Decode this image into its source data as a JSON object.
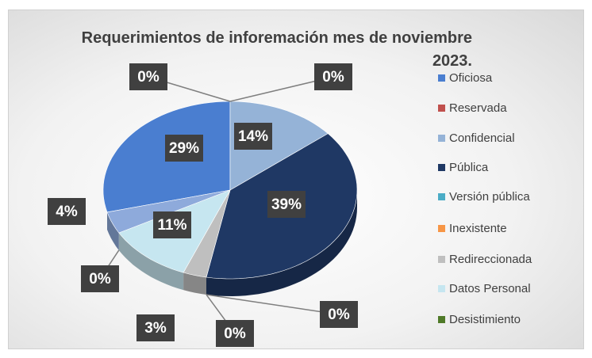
{
  "chart_data": {
    "type": "pie3d",
    "title": "Requerimientos de inforemación mes de noviembre 2023.",
    "categories": [
      "Oficiosa",
      "Reservada",
      null,
      "Confidencial",
      "Pública",
      "Versión pública",
      "Inexistente",
      "Redireccionada",
      "Datos Personal",
      "Desistimiento",
      null
    ],
    "values": [
      29,
      0,
      0,
      14,
      39,
      0,
      0,
      3,
      11,
      0,
      4
    ],
    "value_labels": [
      "29%",
      "0%",
      "0%",
      "14%",
      "39%",
      "0%",
      "0%",
      "3%",
      "11%",
      "0%",
      "4%"
    ],
    "colors": [
      "#4a7ed0",
      "#c0504d",
      "#9bbb59",
      "#95b3d7",
      "#1f3864",
      "#4bacc6",
      "#f79646",
      "#bfbfbf",
      "#c6e6f0",
      "#4f7a28",
      "#8eaadb"
    ],
    "legend": "right"
  }
}
